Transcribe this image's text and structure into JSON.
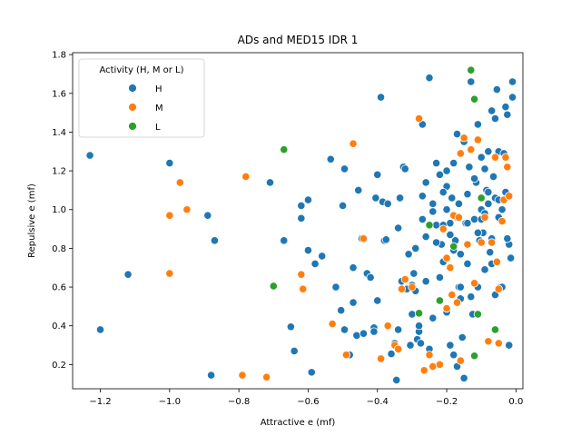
{
  "chart_data": {
    "type": "scatter",
    "title": "ADs and MED15 IDR 1",
    "xlabel": "Attractive e (mf)",
    "ylabel": "Repulsive e (mf)",
    "xlim": [
      -1.28,
      0.02
    ],
    "ylim": [
      0.075,
      1.81
    ],
    "xticks": [
      -1.2,
      -1.0,
      -0.8,
      -0.6,
      -0.4,
      -0.2,
      0.0
    ],
    "yticks": [
      0.2,
      0.4,
      0.6,
      0.8,
      1.0,
      1.2,
      1.4,
      1.6,
      1.8
    ],
    "xtick_labels": [
      "−1.2",
      "−1.0",
      "−0.8",
      "−0.6",
      "−0.4",
      "−0.2",
      "0.0"
    ],
    "ytick_labels": [
      "0.2",
      "0.4",
      "0.6",
      "0.8",
      "1.0",
      "1.2",
      "1.4",
      "1.6",
      "1.8"
    ],
    "grid": false,
    "legend": {
      "title": "Activity (H, M or L)",
      "placement": "top-left"
    },
    "series": [
      {
        "name": "H",
        "color": "#1f77b4",
        "points": [
          [
            -1.23,
            1.28
          ],
          [
            -1.2,
            0.38
          ],
          [
            -1.12,
            0.665
          ],
          [
            -1.0,
            1.24
          ],
          [
            -0.89,
            0.97
          ],
          [
            -0.88,
            0.145
          ],
          [
            -0.87,
            0.84
          ],
          [
            -0.71,
            1.14
          ],
          [
            -0.67,
            0.84
          ],
          [
            -0.65,
            0.395
          ],
          [
            -0.64,
            0.27
          ],
          [
            -0.62,
            1.02
          ],
          [
            -0.62,
            0.955
          ],
          [
            -0.6,
            1.05
          ],
          [
            -0.6,
            0.79
          ],
          [
            -0.59,
            0.16
          ],
          [
            -0.58,
            0.72
          ],
          [
            -0.56,
            0.76
          ],
          [
            -0.535,
            1.26
          ],
          [
            -0.52,
            0.6
          ],
          [
            -0.505,
            0.48
          ],
          [
            -0.5,
            1.02
          ],
          [
            -0.495,
            0.38
          ],
          [
            -0.495,
            1.21
          ],
          [
            -0.48,
            0.25
          ],
          [
            -0.47,
            0.52
          ],
          [
            -0.47,
            0.7
          ],
          [
            -0.46,
            0.35
          ],
          [
            -0.455,
            1.1
          ],
          [
            -0.445,
            0.85
          ],
          [
            -0.44,
            0.36
          ],
          [
            -0.43,
            0.67
          ],
          [
            -0.42,
            0.65
          ],
          [
            -0.41,
            0.39
          ],
          [
            -0.41,
            0.37
          ],
          [
            -0.405,
            1.06
          ],
          [
            -0.4,
            1.18
          ],
          [
            -0.4,
            0.53
          ],
          [
            -0.39,
            1.58
          ],
          [
            -0.385,
            1.04
          ],
          [
            -0.38,
            0.84
          ],
          [
            -0.375,
            0.845
          ],
          [
            -0.37,
            1.03
          ],
          [
            -0.36,
            0.255
          ],
          [
            -0.35,
            0.31
          ],
          [
            -0.345,
            0.12
          ],
          [
            -0.34,
            0.38
          ],
          [
            -0.34,
            0.905
          ],
          [
            -0.335,
            1.06
          ],
          [
            -0.33,
            0.63
          ],
          [
            -0.325,
            1.22
          ],
          [
            -0.32,
            1.21
          ],
          [
            -0.315,
            0.59
          ],
          [
            -0.305,
            0.3
          ],
          [
            -0.3,
            0.61
          ],
          [
            -0.295,
            0.67
          ],
          [
            -0.29,
            0.8
          ],
          [
            -0.285,
            0.33
          ],
          [
            -0.28,
            0.37
          ],
          [
            -0.275,
            0.31
          ],
          [
            -0.27,
            1.07
          ],
          [
            -0.27,
            1.44
          ],
          [
            -0.26,
            0.63
          ],
          [
            -0.26,
            0.86
          ],
          [
            -0.25,
            1.68
          ],
          [
            -0.25,
            0.28
          ],
          [
            -0.24,
            0.44
          ],
          [
            -0.23,
            0.92
          ],
          [
            -0.23,
            1.24
          ],
          [
            -0.22,
            1.18
          ],
          [
            -0.215,
            0.82
          ],
          [
            -0.21,
            0.92
          ],
          [
            -0.2,
            1.2
          ],
          [
            -0.2,
            0.47
          ],
          [
            -0.19,
            0.3
          ],
          [
            -0.185,
            1.06
          ],
          [
            -0.18,
            0.79
          ],
          [
            -0.175,
            0.84
          ],
          [
            -0.17,
            1.39
          ],
          [
            -0.165,
            0.6
          ],
          [
            -0.16,
            0.54
          ],
          [
            -0.155,
            0.34
          ],
          [
            -0.15,
            1.35
          ],
          [
            -0.145,
            0.93
          ],
          [
            -0.14,
            1.08
          ],
          [
            -0.135,
            1.22
          ],
          [
            -0.13,
            1.66
          ],
          [
            -0.125,
            0.46
          ],
          [
            -0.12,
            1.57
          ],
          [
            -0.115,
            1.14
          ],
          [
            -0.11,
            1.44
          ],
          [
            -0.105,
            0.84
          ],
          [
            -0.1,
            1.27
          ],
          [
            -0.095,
            0.88
          ],
          [
            -0.09,
            0.69
          ],
          [
            -0.085,
            1.1
          ],
          [
            -0.08,
            1.3
          ],
          [
            -0.075,
            0.78
          ],
          [
            -0.07,
            1.51
          ],
          [
            -0.065,
            1.17
          ],
          [
            -0.06,
            0.56
          ],
          [
            -0.055,
            1.62
          ],
          [
            -0.05,
            1.3
          ],
          [
            -0.045,
            0.6
          ],
          [
            -0.04,
            1.0
          ],
          [
            -0.035,
            1.29
          ],
          [
            -0.03,
            1.53
          ],
          [
            -0.025,
            1.49
          ],
          [
            -0.02,
            0.82
          ],
          [
            -0.02,
            0.3
          ],
          [
            -0.015,
            0.75
          ],
          [
            -0.01,
            1.66
          ],
          [
            -0.01,
            1.58
          ],
          [
            -0.31,
            0.77
          ],
          [
            -0.3,
            0.46
          ],
          [
            -0.29,
            0.58
          ],
          [
            -0.28,
            0.4
          ],
          [
            -0.27,
            0.95
          ],
          [
            -0.26,
            1.14
          ],
          [
            -0.24,
            0.99
          ],
          [
            -0.22,
            0.65
          ],
          [
            -0.21,
            0.73
          ],
          [
            -0.2,
            1.12
          ],
          [
            -0.19,
            0.93
          ],
          [
            -0.18,
            0.25
          ],
          [
            -0.17,
            0.19
          ],
          [
            -0.165,
            1.03
          ],
          [
            -0.16,
            0.77
          ],
          [
            -0.15,
            0.13
          ],
          [
            -0.14,
            0.72
          ],
          [
            -0.13,
            0.55
          ],
          [
            -0.12,
            0.95
          ],
          [
            -0.11,
            0.6
          ],
          [
            -0.1,
            1.0
          ],
          [
            -0.09,
            1.21
          ],
          [
            -0.08,
            1.03
          ],
          [
            -0.07,
            0.85
          ],
          [
            -0.06,
            1.47
          ],
          [
            -0.05,
            0.96
          ],
          [
            -0.04,
            0.6
          ],
          [
            -0.03,
            1.09
          ],
          [
            -0.025,
            0.85
          ],
          [
            -0.2,
            1.0
          ],
          [
            -0.19,
            0.87
          ],
          [
            -0.18,
            1.24
          ],
          [
            -0.21,
            1.09
          ],
          [
            -0.23,
            0.83
          ],
          [
            -0.24,
            1.03
          ],
          [
            -0.17,
            0.96
          ],
          [
            -0.16,
            0.6
          ],
          [
            -0.14,
            0.93
          ],
          [
            -0.12,
            1.16
          ],
          [
            -0.11,
            0.88
          ],
          [
            -0.1,
            0.95
          ],
          [
            -0.09,
            0.98
          ],
          [
            -0.08,
            1.09
          ],
          [
            -0.07,
            0.72
          ],
          [
            -0.06,
            1.06
          ],
          [
            -0.05,
            1.05
          ]
        ]
      },
      {
        "name": "M",
        "color": "#ff7f0e",
        "points": [
          [
            -1.0,
            0.97
          ],
          [
            -1.0,
            0.67
          ],
          [
            -0.97,
            1.14
          ],
          [
            -0.95,
            1.0
          ],
          [
            -0.78,
            1.17
          ],
          [
            -0.79,
            0.145
          ],
          [
            -0.72,
            0.135
          ],
          [
            -0.62,
            0.665
          ],
          [
            -0.615,
            0.59
          ],
          [
            -0.53,
            0.41
          ],
          [
            -0.49,
            0.25
          ],
          [
            -0.47,
            1.34
          ],
          [
            -0.44,
            0.85
          ],
          [
            -0.39,
            0.23
          ],
          [
            -0.37,
            0.4
          ],
          [
            -0.35,
            0.3
          ],
          [
            -0.34,
            0.28
          ],
          [
            -0.33,
            0.59
          ],
          [
            -0.32,
            0.64
          ],
          [
            -0.3,
            0.6
          ],
          [
            -0.28,
            1.47
          ],
          [
            -0.265,
            0.17
          ],
          [
            -0.25,
            0.25
          ],
          [
            -0.24,
            0.19
          ],
          [
            -0.22,
            0.2
          ],
          [
            -0.21,
            0.9
          ],
          [
            -0.2,
            0.75
          ],
          [
            -0.19,
            0.7
          ],
          [
            -0.185,
            0.56
          ],
          [
            -0.18,
            0.97
          ],
          [
            -0.17,
            0.52
          ],
          [
            -0.165,
            0.96
          ],
          [
            -0.16,
            0.22
          ],
          [
            -0.15,
            1.37
          ],
          [
            -0.14,
            0.82
          ],
          [
            -0.13,
            1.31
          ],
          [
            -0.12,
            0.62
          ],
          [
            -0.11,
            1.36
          ],
          [
            -0.1,
            0.83
          ],
          [
            -0.09,
            0.96
          ],
          [
            -0.08,
            0.32
          ],
          [
            -0.07,
            0.83
          ],
          [
            -0.06,
            1.27
          ],
          [
            -0.055,
            0.73
          ],
          [
            -0.05,
            0.59
          ],
          [
            -0.04,
            0.94
          ],
          [
            -0.035,
            1.05
          ],
          [
            -0.03,
            1.27
          ],
          [
            -0.025,
            1.22
          ],
          [
            -0.02,
            1.07
          ],
          [
            -0.05,
            0.31
          ],
          [
            -0.2,
            0.49
          ],
          [
            -0.16,
            1.29
          ]
        ]
      },
      {
        "name": "L",
        "color": "#2ca02c",
        "points": [
          [
            -0.67,
            1.31
          ],
          [
            -0.7,
            0.605
          ],
          [
            -0.28,
            0.465
          ],
          [
            -0.25,
            0.92
          ],
          [
            -0.22,
            0.53
          ],
          [
            -0.18,
            0.81
          ],
          [
            -0.13,
            1.72
          ],
          [
            -0.12,
            1.57
          ],
          [
            -0.12,
            0.245
          ],
          [
            -0.11,
            0.46
          ],
          [
            -0.06,
            0.38
          ],
          [
            -0.1,
            1.06
          ]
        ]
      }
    ]
  }
}
